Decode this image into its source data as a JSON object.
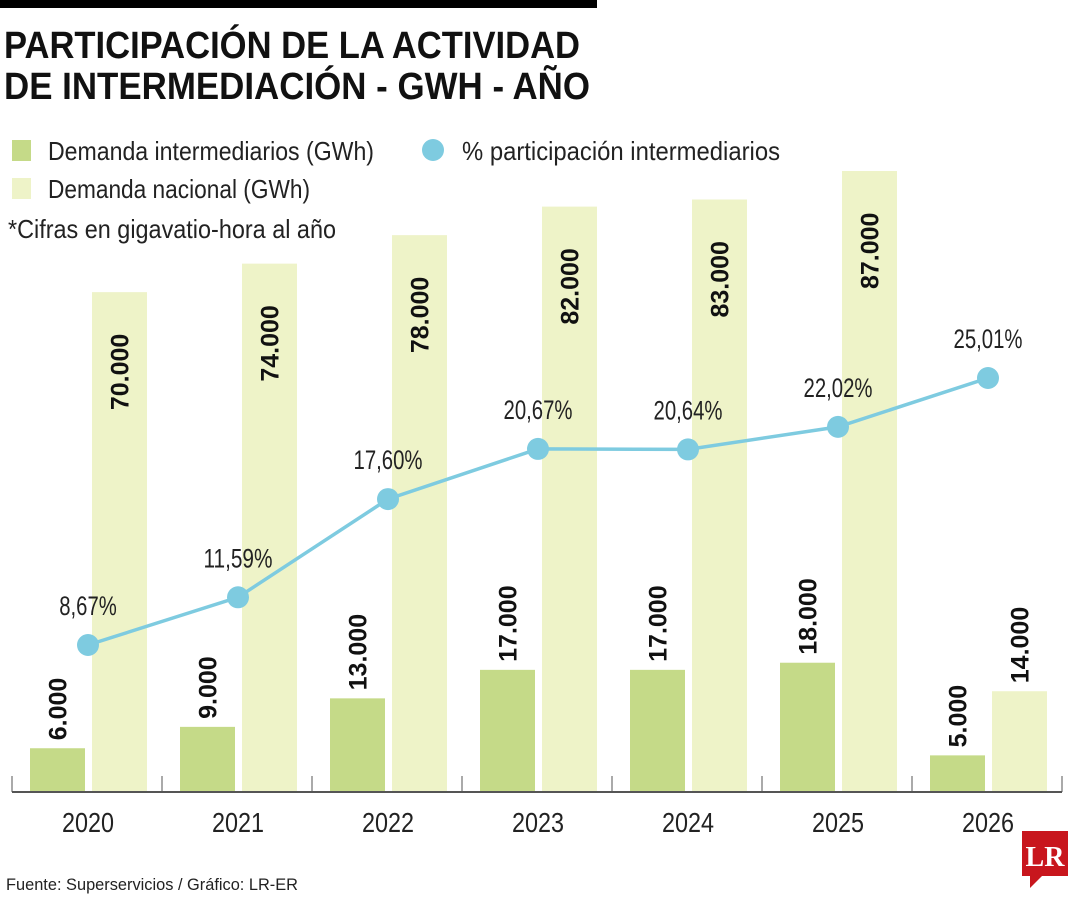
{
  "title_line1": "PARTICIPACIÓN DE LA ACTIVIDAD",
  "title_line2": "DE INTERMEDIACIÓN - GWH - AÑO",
  "legend": {
    "intermediarios": "Demanda intermediarios (GWh)",
    "nacional": "Demanda nacional (GWh)",
    "participacion": "% participación intermediarios"
  },
  "note": "*Cifras en gigavatio-hora al año",
  "source": "Fuente: Superservicios / Gráfico: LR-ER",
  "logo": "LR",
  "colors": {
    "intermediarios": "#c5da88",
    "nacional": "#eef3c8",
    "line": "#7ecbe0",
    "logo": "#c8161d"
  },
  "chart_data": {
    "type": "bar",
    "categories": [
      "2020",
      "2021",
      "2022",
      "2023",
      "2024",
      "2025",
      "2026"
    ],
    "series": [
      {
        "name": "Demanda intermediarios (GWh)",
        "values": [
          6000,
          9000,
          13000,
          17000,
          17000,
          18000,
          5000
        ],
        "labels": [
          "6.000",
          "9.000",
          "13.000",
          "17.000",
          "17.000",
          "18.000",
          "5.000"
        ]
      },
      {
        "name": "Demanda nacional (GWh)",
        "values": [
          70000,
          74000,
          78000,
          82000,
          83000,
          87000,
          14000
        ],
        "labels": [
          "70.000",
          "74.000",
          "78.000",
          "82.000",
          "83.000",
          "87.000",
          "14.000"
        ]
      },
      {
        "name": "% participación intermediarios",
        "type": "line",
        "values": [
          8.67,
          11.59,
          17.6,
          20.67,
          20.64,
          22.02,
          25.01
        ],
        "labels": [
          "8,67%",
          "11,59%",
          "17,60%",
          "20,67%",
          "20,64%",
          "22,02%",
          "25,01%"
        ]
      }
    ],
    "grid": false,
    "legend_position": "top-left"
  }
}
